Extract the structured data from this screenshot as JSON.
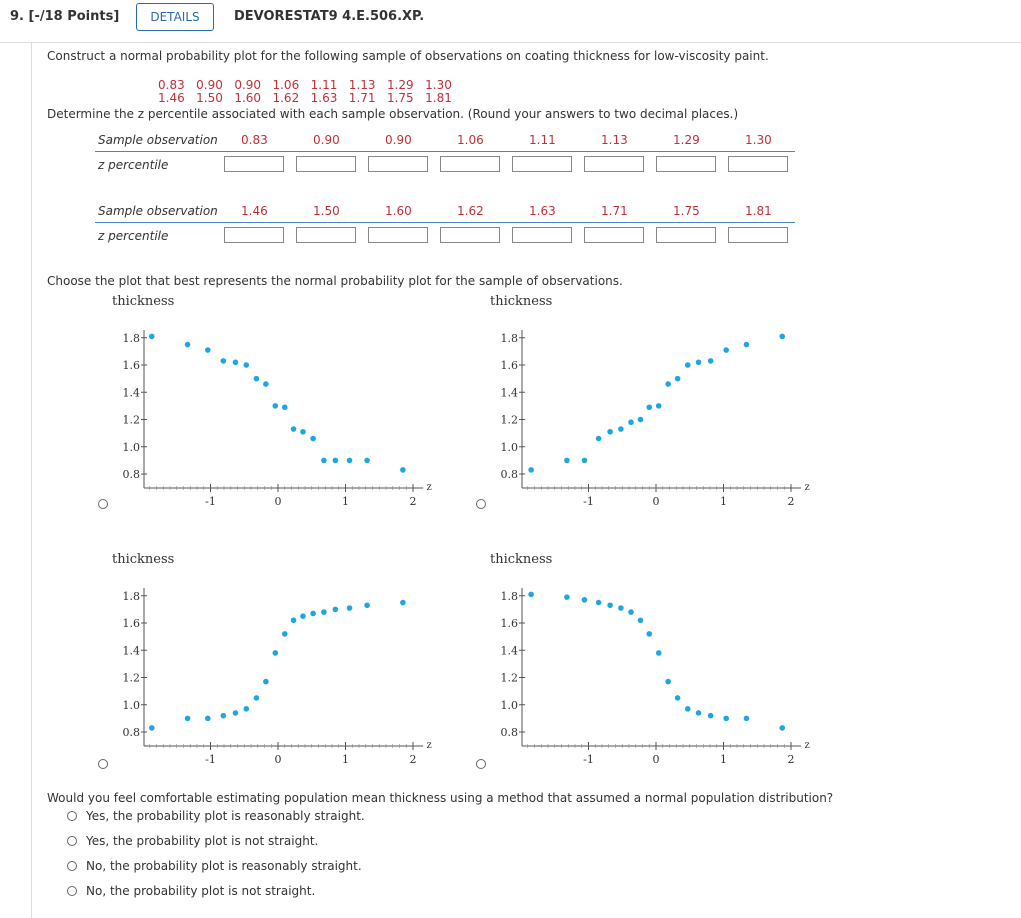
{
  "header": {
    "question_number": "9. [-/18 Points]",
    "details_label": "DETAILS",
    "question_code": "DEVORESTAT9 4.E.506.XP."
  },
  "prompt": "Construct a normal probability plot for the following sample of observations on coating thickness for low-viscosity paint.",
  "data_lines": [
    "0.83   0.90   0.90   1.06   1.11   1.13   1.29   1.30",
    "1.46   1.50   1.60   1.62   1.63   1.71   1.75   1.81"
  ],
  "instruction": "Determine the z percentile associated with each sample observation. (Round your answers to two decimal places.)",
  "table": {
    "row_label_obs": "Sample observation",
    "row_label_z": "z percentile",
    "row1": [
      "0.83",
      "0.90",
      "0.90",
      "1.06",
      "1.11",
      "1.13",
      "1.29",
      "1.30"
    ],
    "row2": [
      "1.46",
      "1.50",
      "1.60",
      "1.62",
      "1.63",
      "1.71",
      "1.75",
      "1.81"
    ]
  },
  "plot_question": "Choose the plot that best represents the normal probability plot for the sample of observations.",
  "plots": {
    "ylabel": "thickness",
    "xlabel": "z",
    "xticks": [
      "-1",
      "0",
      "1",
      "2"
    ],
    "yticks": [
      "1.8",
      "1.6",
      "1.4",
      "1.2",
      "1.0",
      "0.8"
    ]
  },
  "chart_data": [
    {
      "type": "scatter",
      "xlabel": "z",
      "ylabel": "thickness",
      "xlim": [
        -1.95,
        2.1
      ],
      "ylim": [
        0.75,
        1.9
      ],
      "x": [
        -1.87,
        -1.34,
        -1.04,
        -0.81,
        -0.63,
        -0.47,
        -0.32,
        -0.18,
        -0.04,
        0.1,
        0.23,
        0.37,
        0.52,
        0.68,
        0.85,
        1.06,
        1.32,
        1.85
      ],
      "y": [
        1.81,
        1.75,
        1.71,
        1.63,
        1.62,
        1.6,
        1.5,
        1.46,
        1.3,
        1.29,
        1.13,
        1.11,
        1.06,
        0.9,
        0.9,
        0.9,
        0.9,
        0.83
      ]
    },
    {
      "type": "scatter",
      "xlabel": "z",
      "ylabel": "thickness",
      "xlim": [
        -1.95,
        2.1
      ],
      "ylim": [
        0.75,
        1.9
      ],
      "x": [
        -1.85,
        -1.32,
        -1.06,
        -0.85,
        -0.68,
        -0.52,
        -0.37,
        -0.23,
        -0.1,
        0.04,
        0.18,
        0.32,
        0.47,
        0.63,
        0.81,
        1.04,
        1.34,
        1.87
      ],
      "y": [
        0.83,
        0.9,
        0.9,
        1.06,
        1.11,
        1.13,
        1.18,
        1.2,
        1.29,
        1.3,
        1.46,
        1.5,
        1.6,
        1.62,
        1.63,
        1.71,
        1.75,
        1.81
      ]
    },
    {
      "type": "scatter",
      "xlabel": "z",
      "ylabel": "thickness",
      "xlim": [
        -1.95,
        2.1
      ],
      "ylim": [
        0.75,
        1.9
      ],
      "x": [
        -1.87,
        -1.34,
        -1.04,
        -0.81,
        -0.63,
        -0.47,
        -0.32,
        -0.18,
        -0.04,
        0.1,
        0.23,
        0.37,
        0.52,
        0.68,
        0.85,
        1.06,
        1.32,
        1.85
      ],
      "y": [
        0.83,
        0.9,
        0.9,
        0.92,
        0.94,
        0.97,
        1.05,
        1.17,
        1.38,
        1.52,
        1.62,
        1.65,
        1.67,
        1.68,
        1.7,
        1.71,
        1.73,
        1.75
      ]
    },
    {
      "type": "scatter",
      "xlabel": "z",
      "ylabel": "thickness",
      "xlim": [
        -1.95,
        2.1
      ],
      "ylim": [
        0.75,
        1.9
      ],
      "x": [
        -1.85,
        -1.32,
        -1.06,
        -0.85,
        -0.68,
        -0.52,
        -0.37,
        -0.23,
        -0.1,
        0.04,
        0.18,
        0.32,
        0.47,
        0.63,
        0.81,
        1.04,
        1.34,
        1.87
      ],
      "y": [
        1.81,
        1.79,
        1.77,
        1.75,
        1.73,
        1.71,
        1.68,
        1.62,
        1.52,
        1.38,
        1.17,
        1.05,
        0.97,
        0.94,
        0.92,
        0.9,
        0.9,
        0.83
      ]
    }
  ],
  "final_question": "Would you feel comfortable estimating population mean thickness using a method that assumed a normal population distribution?",
  "options": [
    "Yes, the probability plot is reasonably straight.",
    "Yes, the probability plot is not straight.",
    "No, the probability plot is reasonably straight.",
    "No, the probability plot is not straight."
  ],
  "colors": {
    "accent": "#2a6bb0",
    "dot": "#1ea6e0",
    "red_value": "#c0303a"
  }
}
